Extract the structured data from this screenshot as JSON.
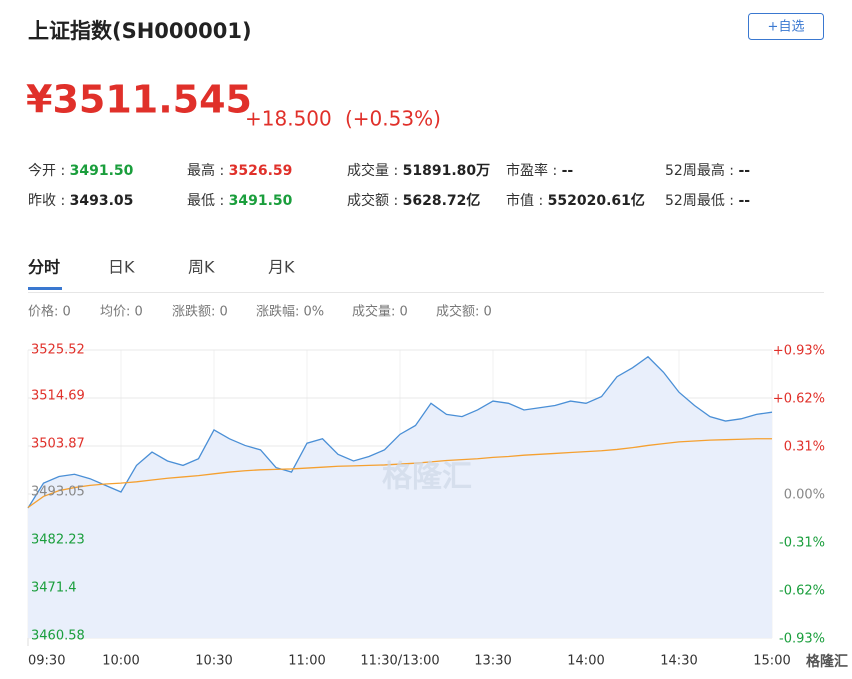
{
  "header": {
    "title": "上证指数(SH000001)",
    "button": "+自选",
    "price": "¥3511.545",
    "change": "+18.500",
    "change_pct": "(+0.53%)"
  },
  "stats": [
    {
      "label": "今开 : ",
      "value": "3491.50",
      "color": "#1a9e3c"
    },
    {
      "label": "最高 : ",
      "value": "3526.59",
      "color": "#e0302a"
    },
    {
      "label": "成交量 : ",
      "value": "51891.80万",
      "color": "#222222"
    },
    {
      "label": "市盈率 : ",
      "value": "--",
      "color": "#222222"
    },
    {
      "label": "52周最高 : ",
      "value": "--",
      "color": "#222222"
    },
    {
      "label": "昨收 : ",
      "value": "3493.05",
      "color": "#222222"
    },
    {
      "label": "最低 : ",
      "value": "3491.50",
      "color": "#1a9e3c"
    },
    {
      "label": "成交额 : ",
      "value": "5628.72亿",
      "color": "#222222"
    },
    {
      "label": "市值 : ",
      "value": "552020.61亿",
      "color": "#222222"
    },
    {
      "label": "52周最低 : ",
      "value": "--",
      "color": "#222222"
    }
  ],
  "tabs": [
    "分时",
    "日K",
    "周K",
    "月K"
  ],
  "info": [
    "价格: 0",
    "均价: 0",
    "涨跌额: 0",
    "涨跌幅: 0%",
    "成交量: 0",
    "成交额: 0"
  ],
  "watermark": "格隆汇",
  "logo": "格隆汇",
  "chart_data": {
    "type": "line",
    "x": [
      0,
      5,
      10,
      15,
      20,
      25,
      30,
      35,
      40,
      45,
      50,
      55,
      60,
      65,
      70,
      75,
      80,
      85,
      90,
      95,
      100,
      105,
      110,
      115,
      120,
      125,
      130,
      135,
      140,
      145,
      150,
      155,
      160,
      165,
      170,
      175,
      180,
      185,
      190,
      195,
      200,
      205,
      210,
      215,
      220,
      225,
      230,
      235,
      240
    ],
    "xlim": [
      0,
      240
    ],
    "xticks": [
      {
        "value": 0,
        "label": "09:30"
      },
      {
        "value": 30,
        "label": "10:00"
      },
      {
        "value": 60,
        "label": "10:30"
      },
      {
        "value": 90,
        "label": "11:00"
      },
      {
        "value": 120,
        "label": "11:30/13:00"
      },
      {
        "value": 150,
        "label": "13:30"
      },
      {
        "value": 180,
        "label": "14:00"
      },
      {
        "value": 210,
        "label": "14:30"
      },
      {
        "value": 240,
        "label": "15:00"
      }
    ],
    "ylim": [
      3460.58,
      3525.52
    ],
    "yticks": [
      3525.52,
      3514.69,
      3503.87,
      3493.05,
      3482.23,
      3471.4,
      3460.58
    ],
    "y2lim": [
      -0.93,
      0.93
    ],
    "y2ticks": [
      {
        "value": 0.93,
        "label": "+0.93%"
      },
      {
        "value": 0.62,
        "label": "+0.62%"
      },
      {
        "value": 0.31,
        "label": "0.31%"
      },
      {
        "value": 0,
        "label": "0.00%"
      },
      {
        "value": -0.31,
        "label": "-0.31%"
      },
      {
        "value": -0.62,
        "label": "-0.62%"
      },
      {
        "value": -0.93,
        "label": "-0.93%"
      }
    ],
    "grid": true,
    "series": [
      {
        "color": "#4a8fd6",
        "fill": "#e9effb",
        "values": [
          3489.9,
          3495.5,
          3497.0,
          3497.5,
          3496.5,
          3495.0,
          3493.5,
          3499.5,
          3502.5,
          3500.5,
          3499.5,
          3501.0,
          3507.5,
          3505.5,
          3504.0,
          3503.0,
          3499.0,
          3498.0,
          3504.5,
          3505.5,
          3502.0,
          3500.5,
          3501.5,
          3503.0,
          3506.5,
          3508.5,
          3513.5,
          3511.0,
          3510.5,
          3512.0,
          3514.0,
          3513.5,
          3512.0,
          3512.5,
          3513.0,
          3514.0,
          3513.5,
          3515.0,
          3519.5,
          3521.5,
          3524.0,
          3520.5,
          3516.0,
          3513.0,
          3510.5,
          3509.5,
          3510.0,
          3511.0,
          3511.5
        ]
      },
      {
        "color": "#f5a030",
        "values": [
          3490.0,
          3492.5,
          3493.8,
          3494.5,
          3495.0,
          3495.3,
          3495.5,
          3495.8,
          3496.2,
          3496.6,
          3496.9,
          3497.2,
          3497.6,
          3498.0,
          3498.3,
          3498.5,
          3498.6,
          3498.7,
          3498.9,
          3499.1,
          3499.3,
          3499.4,
          3499.5,
          3499.6,
          3499.8,
          3500.0,
          3500.3,
          3500.6,
          3500.8,
          3501.0,
          3501.3,
          3501.5,
          3501.8,
          3502.0,
          3502.2,
          3502.4,
          3502.6,
          3502.8,
          3503.1,
          3503.5,
          3504.0,
          3504.4,
          3504.8,
          3505.0,
          3505.2,
          3505.3,
          3505.4,
          3505.5,
          3505.5
        ]
      }
    ]
  }
}
